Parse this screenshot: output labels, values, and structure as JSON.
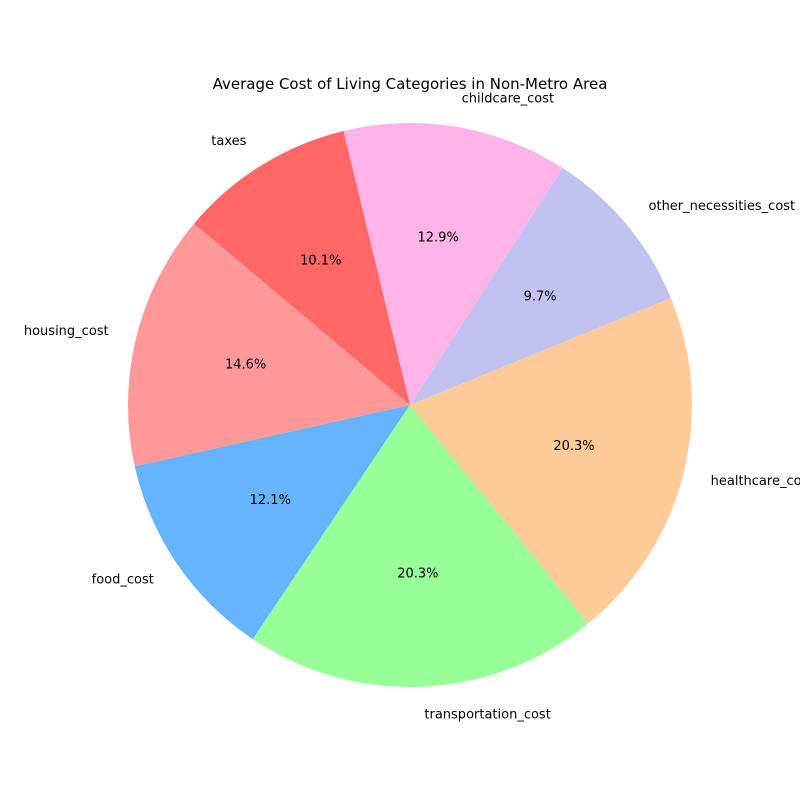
{
  "chart_data": {
    "type": "pie",
    "title": "Average Cost of Living Categories in Non-Metro Area",
    "categories": [
      "housing_cost",
      "food_cost",
      "transportation_cost",
      "healthcare_cost",
      "other_necessities_cost",
      "childcare_cost",
      "taxes"
    ],
    "values": [
      14.6,
      12.1,
      20.3,
      20.3,
      9.7,
      12.9,
      10.1
    ],
    "value_labels": [
      "14.6%",
      "12.1%",
      "20.3%",
      "20.3%",
      "9.7%",
      "12.9%",
      "10.1%"
    ],
    "colors": [
      "#ff9999",
      "#66b3ff",
      "#99ff99",
      "#ffcc99",
      "#c2c2f0",
      "#ffb3e6",
      "#ff6666"
    ],
    "start_angle_deg": 140,
    "direction": "counterclockwise"
  }
}
